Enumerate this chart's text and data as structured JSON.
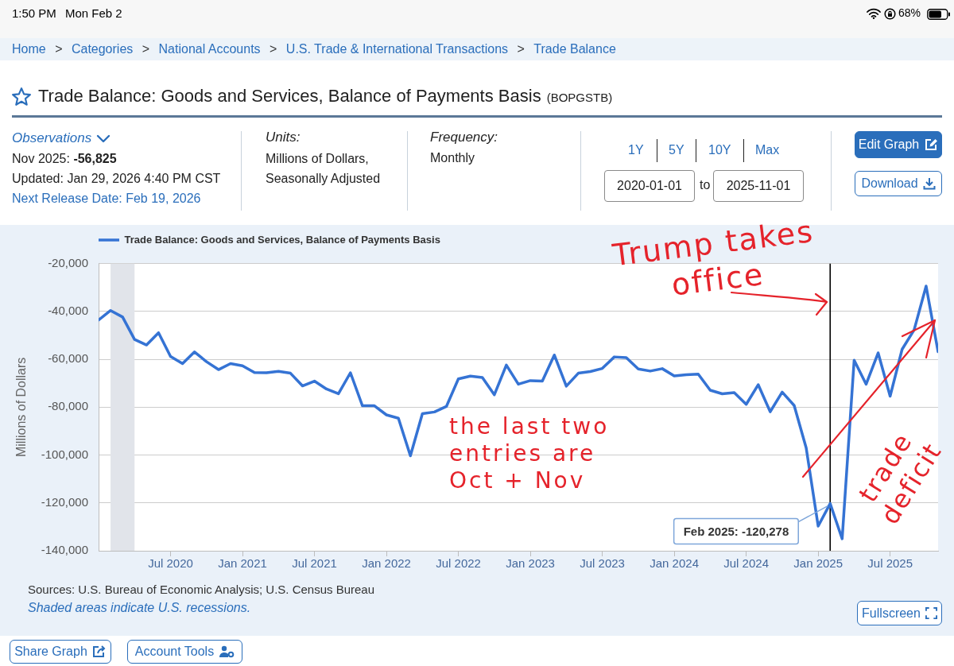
{
  "chart_data": {
    "type": "line",
    "title": "Trade Balance: Goods and Services, Balance of Payments Basis",
    "subtitle": "(BOPGSTB)",
    "ylabel": "Millions of Dollars",
    "x": [
      "2020-01",
      "2020-02",
      "2020-03",
      "2020-04",
      "2020-05",
      "2020-06",
      "2020-07",
      "2020-08",
      "2020-09",
      "2020-10",
      "2020-11",
      "2020-12",
      "2021-01",
      "2021-02",
      "2021-03",
      "2021-04",
      "2021-05",
      "2021-06",
      "2021-07",
      "2021-08",
      "2021-09",
      "2021-10",
      "2021-11",
      "2021-12",
      "2022-01",
      "2022-02",
      "2022-03",
      "2022-04",
      "2022-05",
      "2022-06",
      "2022-07",
      "2022-08",
      "2022-09",
      "2022-10",
      "2022-11",
      "2022-12",
      "2023-01",
      "2023-02",
      "2023-03",
      "2023-04",
      "2023-05",
      "2023-06",
      "2023-07",
      "2023-08",
      "2023-09",
      "2023-10",
      "2023-11",
      "2023-12",
      "2024-01",
      "2024-02",
      "2024-03",
      "2024-04",
      "2024-05",
      "2024-06",
      "2024-07",
      "2024-08",
      "2024-09",
      "2024-10",
      "2024-11",
      "2024-12",
      "2025-01",
      "2025-02",
      "2025-03",
      "2025-04",
      "2025-05",
      "2025-06",
      "2025-07",
      "2025-08",
      "2025-09",
      "2025-10",
      "2025-11"
    ],
    "series": [
      {
        "name": "Trade Balance: Goods and Services, Balance of Payments Basis",
        "color": "#3573d4",
        "values": [
          -43600,
          -39600,
          -42300,
          -51700,
          -54000,
          -48900,
          -58800,
          -61800,
          -56900,
          -61000,
          -64300,
          -61800,
          -62700,
          -65500,
          -65600,
          -65000,
          -65800,
          -71100,
          -69100,
          -72400,
          -74400,
          -65600,
          -79400,
          -79400,
          -83200,
          -84600,
          -100300,
          -82700,
          -82000,
          -79700,
          -68200,
          -67000,
          -67600,
          -74800,
          -62400,
          -70400,
          -68900,
          -69100,
          -58200,
          -71200,
          -65800,
          -65100,
          -63800,
          -59000,
          -59300,
          -64000,
          -64900,
          -63900,
          -66900,
          -66400,
          -66200,
          -72900,
          -74400,
          -73900,
          -78800,
          -70600,
          -81900,
          -73700,
          -79300,
          -97000,
          -129700,
          -120278,
          -135000,
          -60400,
          -70400,
          -57300,
          -75400,
          -55800,
          -47700,
          -29400,
          -56825
        ]
      }
    ],
    "xlim": [
      "2020-01",
      "2025-11"
    ],
    "xticks": [
      {
        "value": "2020-07",
        "label": "Jul 2020"
      },
      {
        "value": "2021-01",
        "label": "Jan 2021"
      },
      {
        "value": "2021-07",
        "label": "Jul 2021"
      },
      {
        "value": "2022-01",
        "label": "Jan 2022"
      },
      {
        "value": "2022-07",
        "label": "Jul 2022"
      },
      {
        "value": "2023-01",
        "label": "Jan 2023"
      },
      {
        "value": "2023-07",
        "label": "Jul 2023"
      },
      {
        "value": "2024-01",
        "label": "Jan 2024"
      },
      {
        "value": "2024-07",
        "label": "Jul 2024"
      },
      {
        "value": "2025-01",
        "label": "Jan 2025"
      },
      {
        "value": "2025-07",
        "label": "Jul 2025"
      }
    ],
    "ylim": [
      -140000,
      -20000
    ],
    "yticks": [
      {
        "value": -140000,
        "label": "-140,000"
      },
      {
        "value": -120000,
        "label": "-120,000"
      },
      {
        "value": -100000,
        "label": "-100,000"
      },
      {
        "value": -80000,
        "label": "-80,000"
      },
      {
        "value": -60000,
        "label": "-60,000"
      },
      {
        "value": -40000,
        "label": "-40,000"
      },
      {
        "value": -20000,
        "label": "-20,000"
      }
    ],
    "grid": "y",
    "legend": "top left",
    "bands": [
      {
        "axis": "x",
        "from": "2020-02",
        "to": "2020-04",
        "color": "#e1e4ea"
      }
    ],
    "ref_lines": [
      {
        "axis": "x",
        "value": "2025-02",
        "color": "#000000"
      }
    ],
    "annotations": [
      "1:50 PM",
      "Mon Feb 2",
      "68%",
      "Home > Categories > National Accounts > U.S. Trade & International Transactions > Trade Balance",
      "Observations",
      "Nov 2025: -56,825",
      "Updated: Jan 29, 2026 4:40 PM CST",
      "Next Release Date: Feb 19, 2026",
      "Units:",
      "Millions of Dollars,",
      "Seasonally Adjusted",
      "Frequency:",
      "Monthly",
      "1Y",
      "5Y",
      "10Y",
      "Max",
      "2020-01-01",
      "to",
      "2025-11-01",
      "Edit Graph",
      "Download",
      "Trump takes office",
      "the last two entries are Oct + Nov",
      "trade deficit",
      {
        "text": "Feb 2025: -120,278",
        "x": "2025-02",
        "y": -120278
      },
      "Sources: U.S. Bureau of Economic Analysis; U.S. Census Bureau",
      "Shaded areas indicate U.S. recessions.",
      "Fullscreen",
      "Share Graph",
      "Account Tools"
    ]
  }
}
